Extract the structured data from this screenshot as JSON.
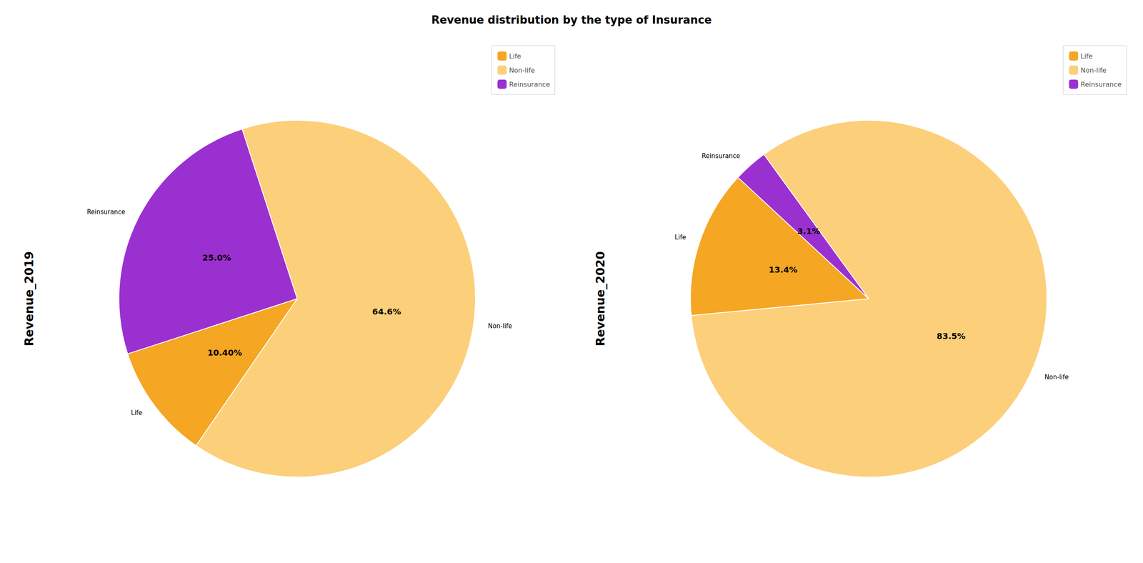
{
  "title": "Revenue distribution by the type of Insurance",
  "chart_data": [
    {
      "type": "pie",
      "ylabel": "Revenue_2019",
      "categories": [
        "Non-life",
        "Life",
        "Reinsurance"
      ],
      "values": [
        64.6,
        10.4,
        25.0
      ],
      "value_labels": [
        "64.6%",
        "10.40%",
        "25.0%"
      ],
      "colors": [
        "#FCCF7A",
        "#F5A623",
        "#9B30D0"
      ],
      "data_labels": true,
      "legend": "upper right",
      "legend_entries": [
        "Life",
        "Non-life",
        "Reinsurance"
      ]
    },
    {
      "type": "pie",
      "ylabel": "Revenue_2020",
      "categories": [
        "Non-life",
        "Life",
        "Reinsurance"
      ],
      "values": [
        83.5,
        13.4,
        3.1
      ],
      "value_labels": [
        "83.5%",
        "13.4%",
        "3.1%"
      ],
      "colors": [
        "#FCCF7A",
        "#F5A623",
        "#9B30D0"
      ],
      "data_labels": true,
      "legend": "upper right",
      "legend_entries": [
        "Life",
        "Non-life",
        "Reinsurance"
      ]
    }
  ]
}
